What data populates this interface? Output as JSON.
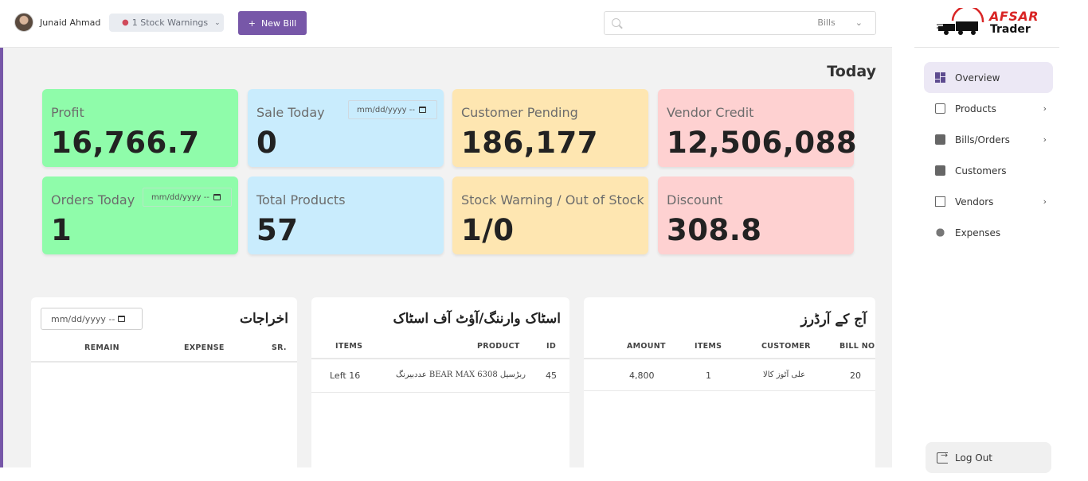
{
  "header": {
    "user_name": "Junaid Ahmad",
    "stock_warning": "1 Stock Warnings",
    "new_bill": "New Bill",
    "new_bill_icon": "+",
    "search_placeholder": "",
    "search_scope": "Bills"
  },
  "sidebar": {
    "logo_line1": "AFSAR",
    "logo_line2": "Trader",
    "items": [
      {
        "label": "Overview",
        "icon": "grid-icon",
        "has_arrow": false
      },
      {
        "label": "Products",
        "icon": "box-icon",
        "has_arrow": true
      },
      {
        "label": "Bills/Orders",
        "icon": "bag-icon",
        "has_arrow": true
      },
      {
        "label": "Customers",
        "icon": "id-card-icon",
        "has_arrow": false
      },
      {
        "label": "Vendors",
        "icon": "building-icon",
        "has_arrow": true
      },
      {
        "label": "Expenses",
        "icon": "coins-icon",
        "has_arrow": false
      }
    ],
    "logout": "Log Out"
  },
  "dashboard": {
    "heading": "Today",
    "date_placeholder": "mm/dd/yyyy --",
    "cards": [
      {
        "label": "Profit",
        "value": "16,766.7"
      },
      {
        "label": "Sale Today",
        "value": "0"
      },
      {
        "label": "Customer Pending",
        "value": "186,177"
      },
      {
        "label": "Vendor Credit",
        "value": "12,506,088"
      },
      {
        "label": "Orders Today",
        "value": "1"
      },
      {
        "label": "Total Products",
        "value": "57"
      },
      {
        "label": "Stock Warning / Out of Stock",
        "value": "1/0"
      },
      {
        "label": "Discount",
        "value": "308.8"
      }
    ]
  },
  "expenses_panel": {
    "title": "اخراجات",
    "date_placeholder": "mm/dd/yyyy --",
    "columns": [
      "REMAIN",
      "EXPENSE",
      "SR."
    ]
  },
  "stock_panel": {
    "title": "اسٹاک وارننگ/آؤٹ آف اسٹاک",
    "columns": [
      "ITEMS",
      "PRODUCT",
      "ID"
    ],
    "rows": [
      {
        "items": "Left 16",
        "product": "عددبیرنگ BEAR MAX 6308 ربڑسیل",
        "id": "45"
      }
    ]
  },
  "orders_panel": {
    "title": "آج کے آرڈرز",
    "columns": [
      "AMOUNT",
      "ITEMS",
      "CUSTOMER",
      "BILL NO"
    ],
    "rows": [
      {
        "amount": "4,800",
        "items": "1",
        "customer": "علی آٹوز کالا",
        "bill_no": "20"
      }
    ]
  },
  "colors": {
    "accent": "#7757a8",
    "green": "#8ffcaa",
    "blue": "#c9ecfd",
    "yellow": "#fee6b1",
    "pink": "#fed1d1"
  }
}
